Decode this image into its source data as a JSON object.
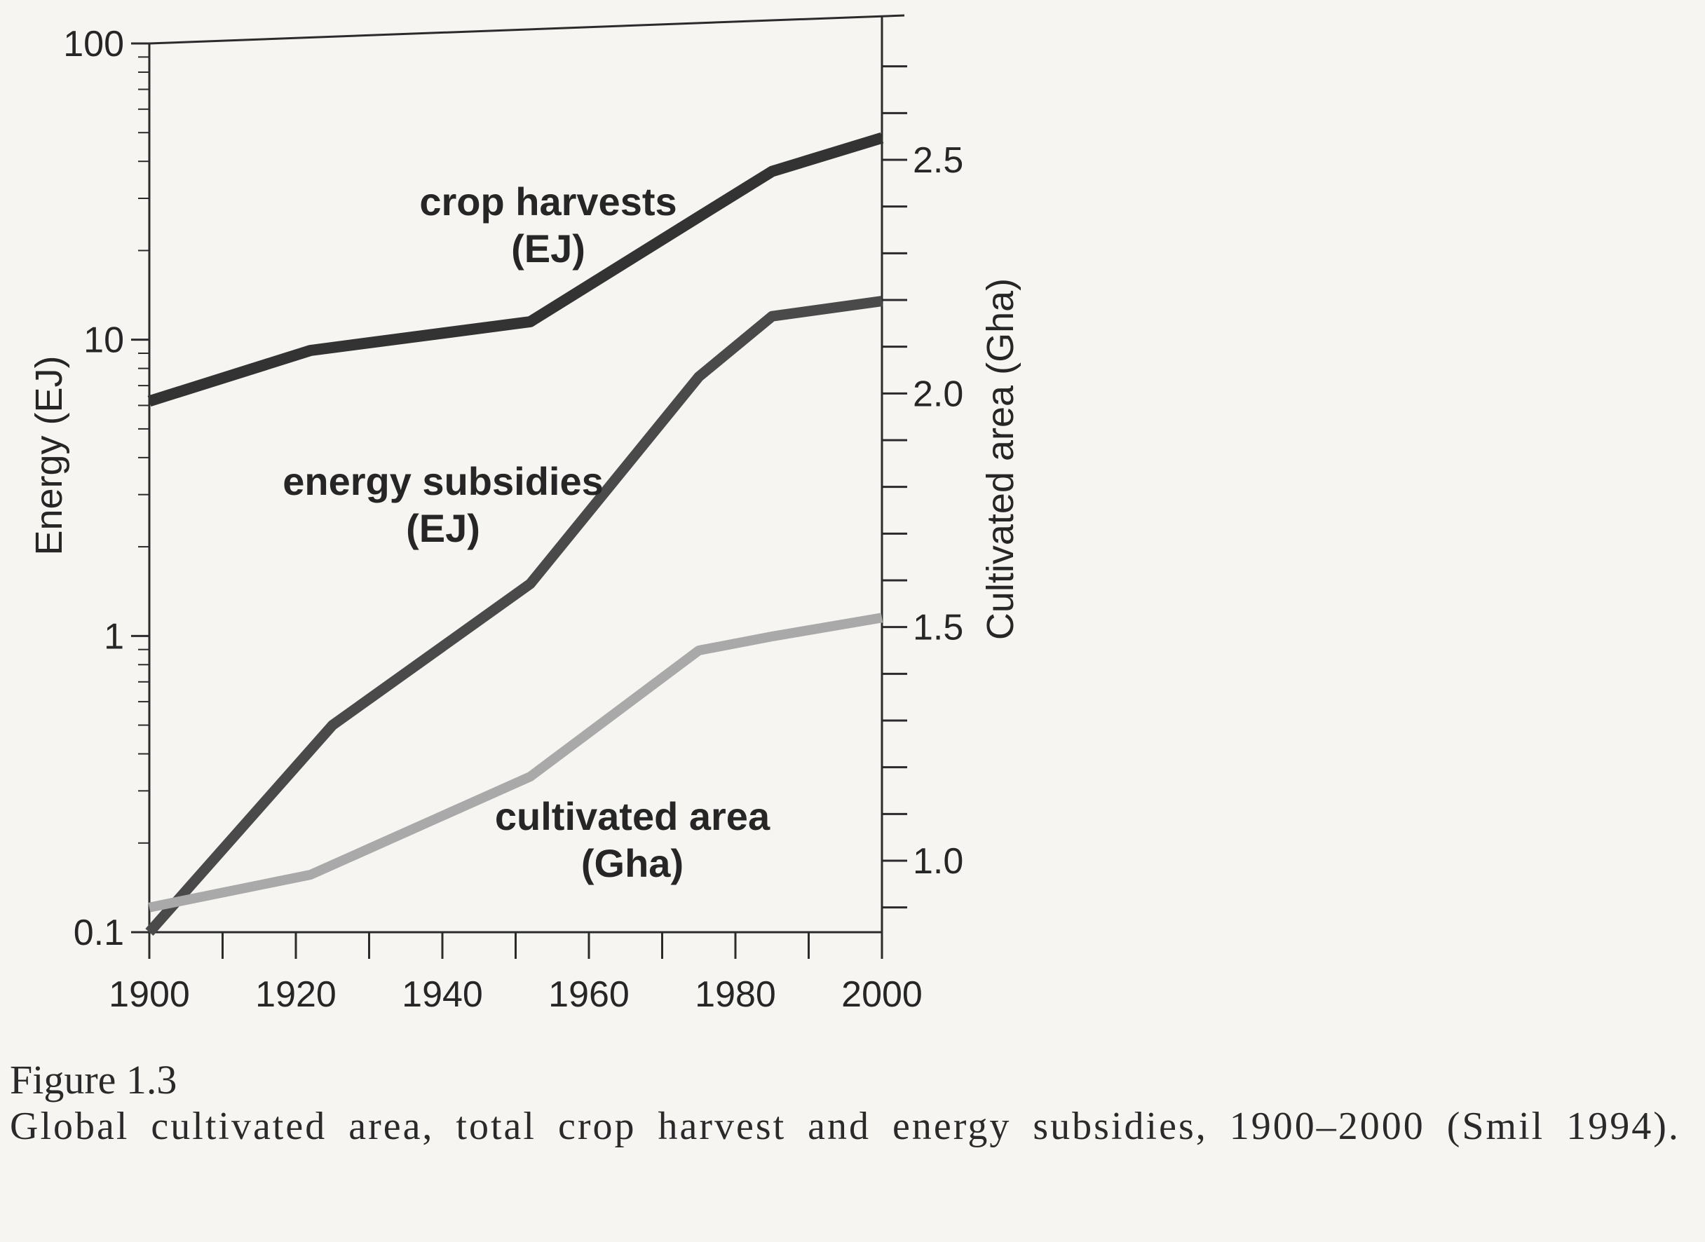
{
  "chart_data": {
    "type": "line",
    "x": [
      1900,
      1910,
      1925,
      1940,
      1952,
      1965,
      1976,
      1986,
      2000
    ],
    "xticks": [
      1900,
      1920,
      1940,
      1960,
      1980,
      2000
    ],
    "xlim": [
      1900,
      2000
    ],
    "left_axis": {
      "label": "Energy (EJ)",
      "scale": "log",
      "ylim": [
        0.1,
        100
      ],
      "ticks": [
        "0.1",
        "1",
        "10",
        "100"
      ],
      "tick_values": [
        0.1,
        1,
        10,
        100
      ]
    },
    "right_axis": {
      "label": "Cultivated area (Gha)",
      "scale": "linear",
      "ylim": [
        0.85,
        2.8
      ],
      "ticks": [
        "1.0",
        "1.5",
        "2.0",
        "2.5"
      ],
      "tick_values": [
        1.0,
        1.5,
        2.0,
        2.5
      ]
    },
    "series": [
      {
        "name": "crop harvests (EJ)",
        "label_line1": "crop harvests",
        "label_line2": "(EJ)",
        "axis": "left",
        "color": "#333333",
        "x": [
          1900,
          1922,
          1952,
          1975,
          1985,
          2000
        ],
        "values": [
          6.2,
          9.2,
          11.5,
          26,
          37,
          48
        ]
      },
      {
        "name": "energy subsidies (EJ)",
        "label_line1": "energy subsidies",
        "label_line2": "(EJ)",
        "axis": "left",
        "color": "#4a4a4a",
        "x": [
          1900,
          1925,
          1952,
          1975,
          1985,
          2000
        ],
        "values": [
          0.1,
          0.5,
          1.5,
          7.5,
          12,
          13.5
        ]
      },
      {
        "name": "cultivated area (Gha)",
        "label_line1": "cultivated area",
        "label_line2": "(Gha)",
        "axis": "right",
        "color": "#a9a9a9",
        "x": [
          1900,
          1922,
          1952,
          1975,
          1985,
          2000
        ],
        "values": [
          0.9,
          0.97,
          1.18,
          1.45,
          1.48,
          1.52
        ]
      }
    ],
    "grid": false,
    "legend": "none (series labelled directly on plot)"
  },
  "caption": {
    "figure_label": "Figure 1.3",
    "text": "Global cultivated area, total crop harvest and energy subsidies, 1900–2000 (Smil 1994)."
  }
}
